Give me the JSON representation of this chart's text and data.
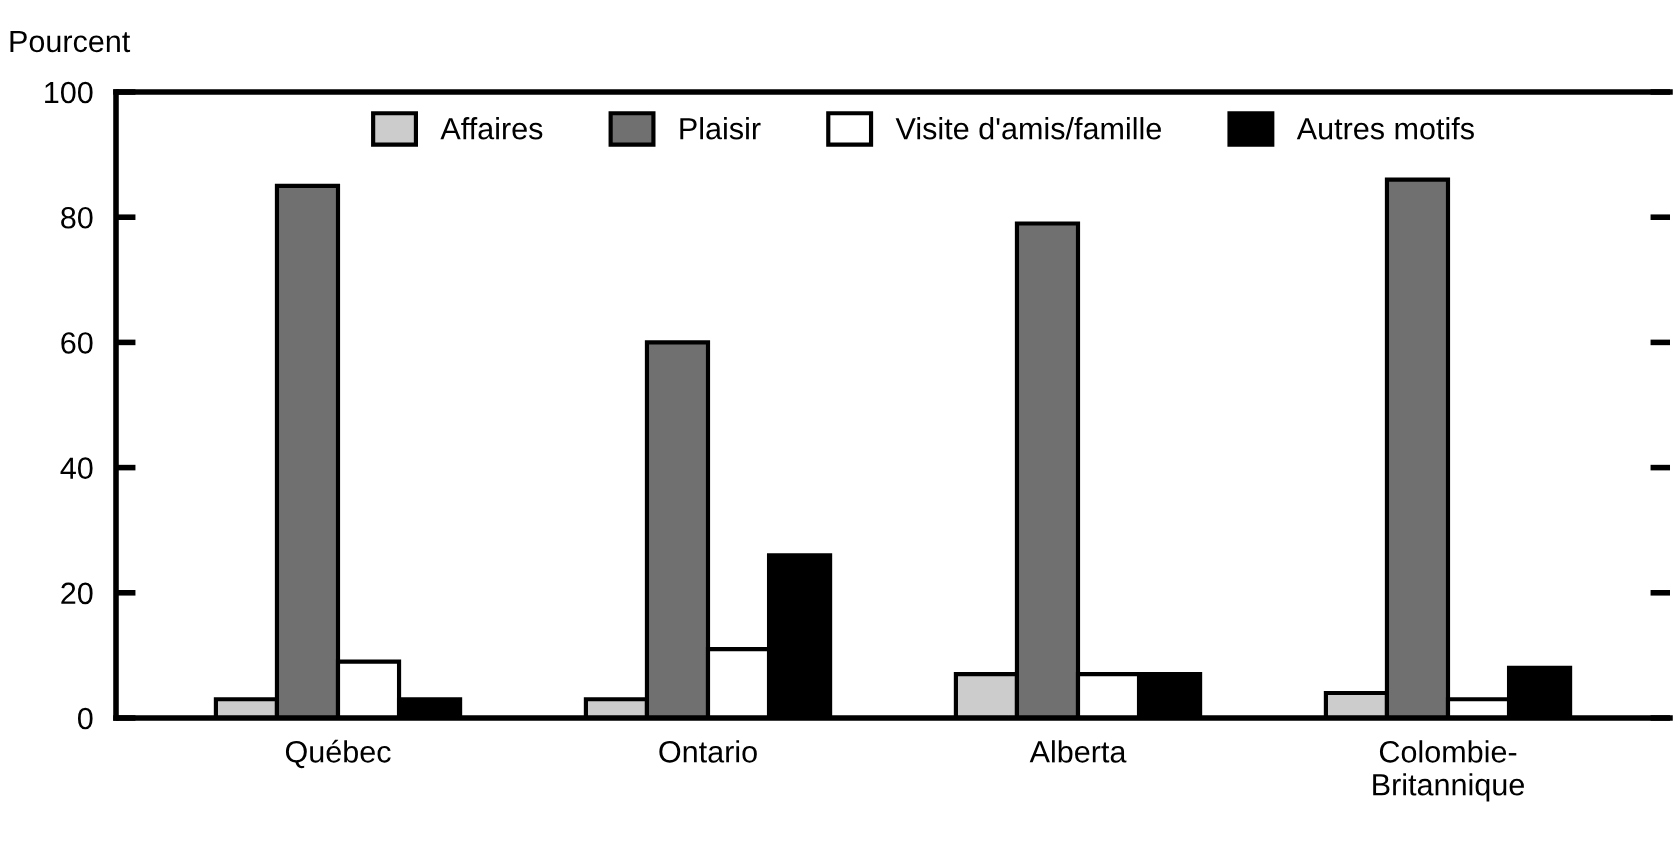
{
  "chart_data": {
    "type": "bar",
    "ylabel": "Pourcent",
    "categories": [
      "Québec",
      "Ontario",
      "Alberta",
      "Colombie-\nBritannique"
    ],
    "series": [
      {
        "name": "Affaires",
        "color": "#cccccc",
        "values": [
          3,
          3,
          7,
          4
        ]
      },
      {
        "name": "Plaisir",
        "color": "#707070",
        "values": [
          85,
          60,
          79,
          86
        ]
      },
      {
        "name": "Visite d'amis/famille",
        "color": "#ffffff",
        "values": [
          9,
          11,
          7,
          3
        ]
      },
      {
        "name": "Autres motifs",
        "color": "#000000",
        "values": [
          3,
          26,
          7,
          8
        ]
      }
    ],
    "ylim": [
      0,
      100
    ],
    "yticks": [
      0,
      20,
      40,
      60,
      80,
      100
    ],
    "grid": false,
    "legend": "top"
  }
}
